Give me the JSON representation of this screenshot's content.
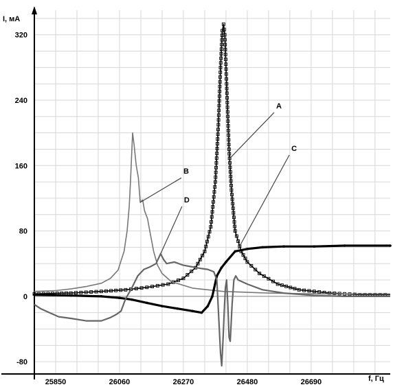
{
  "chart_data": {
    "type": "line",
    "title": "",
    "ylabel": "I, мА",
    "xlabel": "f, Гц",
    "xlim": [
      25780,
      26950
    ],
    "ylim": [
      -95,
      350
    ],
    "grid": true,
    "x_ticks": [
      "25850",
      "26060",
      "26270",
      "26480",
      "26690"
    ],
    "y_ticks": [
      "320",
      "240",
      "160",
      "80",
      "0",
      "-80"
    ],
    "series": [
      {
        "name": "A",
        "color": "#000000",
        "marker": "square",
        "points": [
          [
            25780,
            3
          ],
          [
            25900,
            4
          ],
          [
            26000,
            6
          ],
          [
            26080,
            8
          ],
          [
            26150,
            11
          ],
          [
            26220,
            15
          ],
          [
            26270,
            22
          ],
          [
            26310,
            35
          ],
          [
            26340,
            55
          ],
          [
            26360,
            85
          ],
          [
            26375,
            140
          ],
          [
            26385,
            210
          ],
          [
            26392,
            280
          ],
          [
            26398,
            325
          ],
          [
            26402,
            333
          ],
          [
            26406,
            320
          ],
          [
            26412,
            260
          ],
          [
            26420,
            180
          ],
          [
            26428,
            130
          ],
          [
            26440,
            80
          ],
          [
            26460,
            55
          ],
          [
            26480,
            42
          ],
          [
            26520,
            28
          ],
          [
            26580,
            15
          ],
          [
            26650,
            8
          ],
          [
            26750,
            4
          ],
          [
            26850,
            2
          ],
          [
            26950,
            2
          ]
        ]
      },
      {
        "name": "B",
        "color": "#777777",
        "points": [
          [
            25780,
            6
          ],
          [
            25850,
            7
          ],
          [
            25900,
            9
          ],
          [
            25950,
            12
          ],
          [
            26000,
            16
          ],
          [
            26030,
            22
          ],
          [
            26055,
            32
          ],
          [
            26075,
            55
          ],
          [
            26085,
            80
          ],
          [
            26092,
            110
          ],
          [
            26096,
            140
          ],
          [
            26100,
            175
          ],
          [
            26103,
            200
          ],
          [
            26108,
            185
          ],
          [
            26115,
            160
          ],
          [
            26122,
            145
          ],
          [
            26128,
            115
          ],
          [
            26136,
            118
          ],
          [
            26142,
            105
          ],
          [
            26152,
            95
          ],
          [
            26162,
            75
          ],
          [
            26172,
            55
          ],
          [
            26185,
            38
          ],
          [
            26200,
            28
          ],
          [
            26230,
            18
          ],
          [
            26300,
            10
          ],
          [
            26400,
            6
          ],
          [
            26550,
            4
          ],
          [
            26700,
            3
          ],
          [
            26950,
            3
          ]
        ]
      },
      {
        "name": "C",
        "color": "#000000",
        "marker": "dot",
        "points": [
          [
            25780,
            2
          ],
          [
            25900,
            1
          ],
          [
            26000,
            0
          ],
          [
            26060,
            -2
          ],
          [
            26100,
            -4
          ],
          [
            26150,
            -8
          ],
          [
            26200,
            -12
          ],
          [
            26250,
            -15
          ],
          [
            26300,
            -18
          ],
          [
            26330,
            -20
          ],
          [
            26350,
            -12
          ],
          [
            26365,
            0
          ],
          [
            26380,
            25
          ],
          [
            26395,
            35
          ],
          [
            26410,
            42
          ],
          [
            26440,
            55
          ],
          [
            26480,
            58
          ],
          [
            26530,
            60
          ],
          [
            26600,
            61
          ],
          [
            26700,
            61
          ],
          [
            26800,
            62
          ],
          [
            26950,
            62
          ]
        ]
      },
      {
        "name": "D",
        "color": "#666666",
        "points": [
          [
            25780,
            -10
          ],
          [
            25800,
            -15
          ],
          [
            25830,
            -20
          ],
          [
            25860,
            -25
          ],
          [
            25900,
            -27
          ],
          [
            25950,
            -30
          ],
          [
            26000,
            -30
          ],
          [
            26030,
            -26
          ],
          [
            26050,
            -22
          ],
          [
            26065,
            -18
          ],
          [
            26080,
            -3
          ],
          [
            26100,
            10
          ],
          [
            26120,
            25
          ],
          [
            26140,
            33
          ],
          [
            26160,
            36
          ],
          [
            26180,
            40
          ],
          [
            26195,
            52
          ],
          [
            26205,
            45
          ],
          [
            26215,
            40
          ],
          [
            26240,
            42
          ],
          [
            26270,
            38
          ],
          [
            26300,
            36
          ],
          [
            26330,
            34
          ],
          [
            26350,
            33
          ],
          [
            26370,
            30
          ],
          [
            26380,
            20
          ],
          [
            26388,
            -40
          ],
          [
            26392,
            -70
          ],
          [
            26396,
            -85
          ],
          [
            26400,
            -55
          ],
          [
            26404,
            -20
          ],
          [
            26408,
            10
          ],
          [
            26412,
            20
          ],
          [
            26416,
            -10
          ],
          [
            26420,
            -50
          ],
          [
            26424,
            -55
          ],
          [
            26430,
            -10
          ],
          [
            26436,
            20
          ],
          [
            26442,
            25
          ],
          [
            26450,
            20
          ],
          [
            26480,
            15
          ],
          [
            26530,
            8
          ],
          [
            26600,
            4
          ],
          [
            26700,
            1
          ],
          [
            26800,
            0
          ],
          [
            26950,
            0
          ]
        ]
      }
    ],
    "annotations": [
      {
        "label": "A",
        "x": 26575,
        "y": 230,
        "target_x": 26418,
        "target_y": 167
      },
      {
        "label": "B",
        "x": 26270,
        "y": 150,
        "target_x": 26128,
        "target_y": 115
      },
      {
        "label": "C",
        "x": 26625,
        "y": 178,
        "target_x": 26450,
        "target_y": 58
      },
      {
        "label": "D",
        "x": 26272,
        "y": 115,
        "target_x": 26195,
        "target_y": 52
      }
    ]
  }
}
